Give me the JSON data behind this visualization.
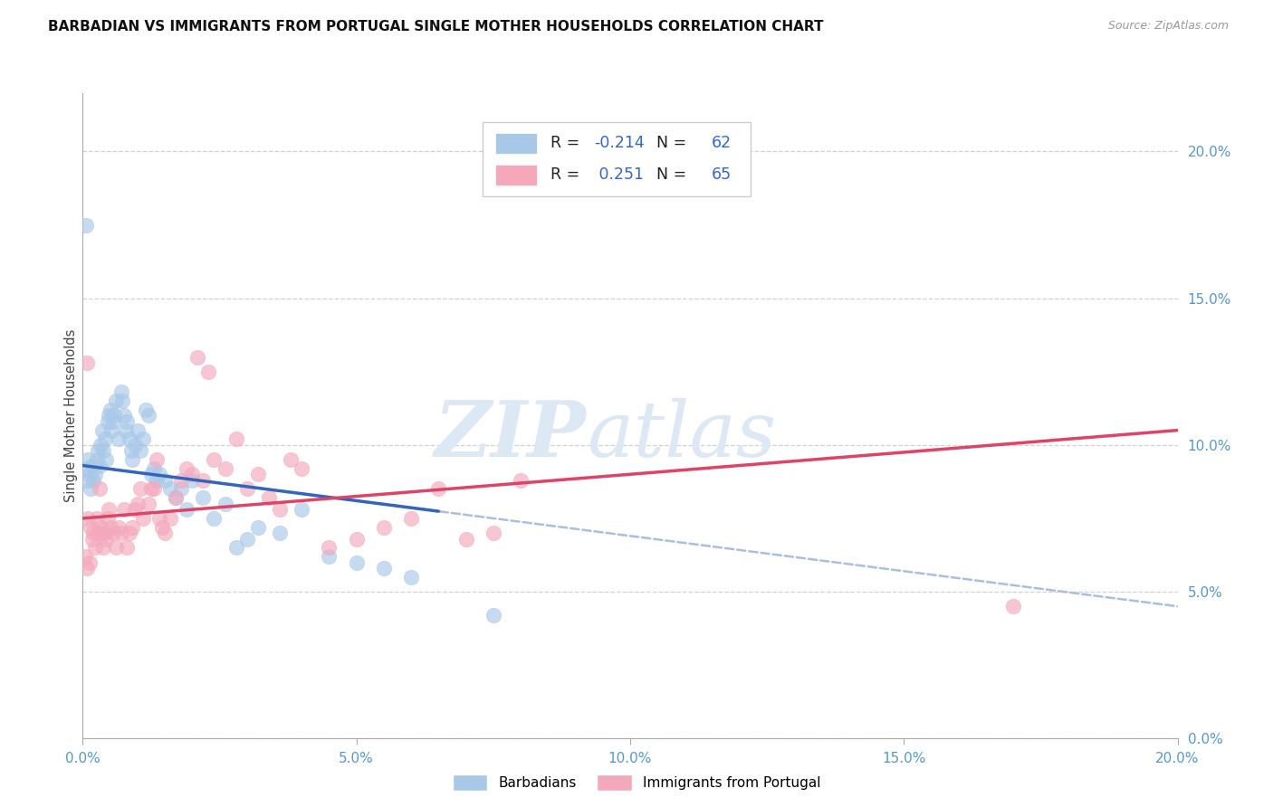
{
  "title": "BARBADIAN VS IMMIGRANTS FROM PORTUGAL SINGLE MOTHER HOUSEHOLDS CORRELATION CHART",
  "source": "Source: ZipAtlas.com",
  "ylabel": "Single Mother Households",
  "barbadian_color": "#a8c8e8",
  "portugal_color": "#f4a8bc",
  "trend_blue_solid": "#3366bb",
  "trend_pink_solid": "#dd4466",
  "trend_blue_dashed": "#aabedd",
  "watermark_color": "#dde8f5",
  "xlim": [
    0,
    20
  ],
  "ylim": [
    0,
    22
  ],
  "x_ticks": [
    0,
    5,
    10,
    15,
    20
  ],
  "y_ticks": [
    0,
    5,
    10,
    15,
    20
  ],
  "R_barbadian": -0.214,
  "N_barbadian": 62,
  "R_portugal": 0.251,
  "N_portugal": 65,
  "blue_trend_x0": 0,
  "blue_trend_y0": 9.3,
  "blue_trend_x1": 20,
  "blue_trend_y1": 4.5,
  "blue_solid_x_end": 6.5,
  "pink_trend_x0": 0,
  "pink_trend_y0": 7.5,
  "pink_trend_x1": 20,
  "pink_trend_y1": 10.5,
  "barbadian_x": [
    0.05,
    0.08,
    0.1,
    0.12,
    0.15,
    0.18,
    0.2,
    0.22,
    0.25,
    0.28,
    0.3,
    0.32,
    0.35,
    0.38,
    0.4,
    0.42,
    0.45,
    0.48,
    0.5,
    0.52,
    0.55,
    0.58,
    0.6,
    0.65,
    0.7,
    0.72,
    0.75,
    0.78,
    0.8,
    0.85,
    0.88,
    0.9,
    0.95,
    1.0,
    1.05,
    1.1,
    1.15,
    1.2,
    1.25,
    1.3,
    1.35,
    1.4,
    1.5,
    1.6,
    1.7,
    1.8,
    1.9,
    2.0,
    2.2,
    2.4,
    2.6,
    2.8,
    3.0,
    3.2,
    3.6,
    4.0,
    4.5,
    5.0,
    5.5,
    6.0,
    0.06,
    7.5
  ],
  "barbadian_y": [
    9.2,
    8.8,
    9.5,
    9.0,
    8.5,
    9.3,
    8.8,
    9.0,
    9.5,
    9.8,
    9.3,
    10.0,
    10.5,
    9.8,
    10.2,
    9.5,
    10.8,
    11.0,
    11.2,
    10.5,
    10.8,
    11.0,
    11.5,
    10.2,
    11.8,
    11.5,
    11.0,
    10.5,
    10.8,
    10.2,
    9.8,
    9.5,
    10.0,
    10.5,
    9.8,
    10.2,
    11.2,
    11.0,
    9.0,
    9.2,
    8.8,
    9.0,
    8.8,
    8.5,
    8.2,
    8.5,
    7.8,
    8.8,
    8.2,
    7.5,
    8.0,
    6.5,
    6.8,
    7.2,
    7.0,
    7.8,
    6.2,
    6.0,
    5.8,
    5.5,
    17.5,
    4.2
  ],
  "portugal_x": [
    0.05,
    0.08,
    0.1,
    0.12,
    0.15,
    0.18,
    0.2,
    0.22,
    0.25,
    0.28,
    0.3,
    0.32,
    0.35,
    0.38,
    0.4,
    0.42,
    0.45,
    0.48,
    0.5,
    0.55,
    0.6,
    0.65,
    0.7,
    0.75,
    0.8,
    0.85,
    0.9,
    0.95,
    1.0,
    1.05,
    1.1,
    1.2,
    1.3,
    1.4,
    1.5,
    1.6,
    1.7,
    1.8,
    1.9,
    2.0,
    2.2,
    2.4,
    2.6,
    2.8,
    3.0,
    3.2,
    3.4,
    3.6,
    3.8,
    4.0,
    4.5,
    5.0,
    5.5,
    6.0,
    6.5,
    7.0,
    7.5,
    8.0,
    1.25,
    1.35,
    1.45,
    2.1,
    2.3,
    0.08,
    17.0
  ],
  "portugal_y": [
    6.2,
    5.8,
    7.5,
    6.0,
    7.2,
    6.8,
    7.0,
    6.5,
    7.5,
    7.0,
    8.5,
    7.2,
    7.0,
    6.5,
    7.0,
    6.8,
    7.5,
    7.8,
    7.2,
    7.0,
    6.5,
    7.2,
    7.0,
    7.8,
    6.5,
    7.0,
    7.2,
    7.8,
    8.0,
    8.5,
    7.5,
    8.0,
    8.5,
    7.5,
    7.0,
    7.5,
    8.2,
    8.8,
    9.2,
    9.0,
    8.8,
    9.5,
    9.2,
    10.2,
    8.5,
    9.0,
    8.2,
    7.8,
    9.5,
    9.2,
    6.5,
    6.8,
    7.2,
    7.5,
    8.5,
    6.8,
    7.0,
    8.8,
    8.5,
    9.5,
    7.2,
    13.0,
    12.5,
    12.8,
    4.5
  ]
}
